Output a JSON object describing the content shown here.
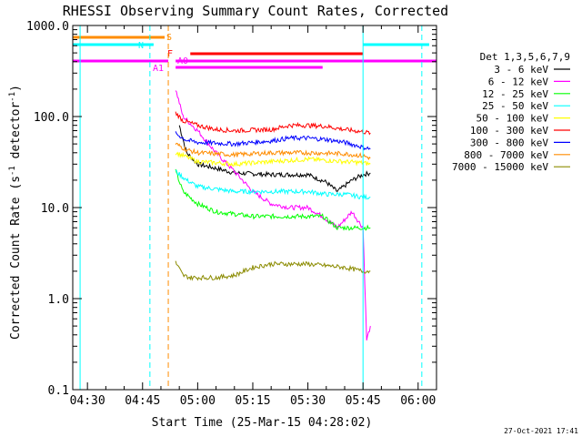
{
  "chart_data": {
    "type": "line",
    "title": "RHESSI Observing Summary Count Rates, Corrected",
    "xlabel": "Start Time (25-Mar-15 04:28:02)",
    "ylabel": "Corrected Count Rate (s⁻¹ detector⁻¹)",
    "ylabel_main": "Corrected Count Rate (s",
    "ylabel_sup1": "-1",
    "ylabel_mid": " detector",
    "ylabel_sup2": "-1",
    "ylabel_end": ")",
    "y_scale": "log",
    "ylim": [
      0.1,
      1000.0
    ],
    "xlim": [
      "04:26",
      "06:05"
    ],
    "x_ticks": [
      "04:30",
      "04:45",
      "05:00",
      "05:15",
      "05:30",
      "05:45",
      "06:00"
    ],
    "y_ticks": [
      "0.1",
      "1.0",
      "10.0",
      "100.0",
      "1000.0"
    ],
    "legend_placement": "right",
    "legend_title": "Det 1,3,5,6,7,9",
    "timestamp": "27-Oct-2021 17:41",
    "series": [
      {
        "name": "3 - 6 keV",
        "color": "#000000",
        "x": [
          "04:55",
          "04:57",
          "05:00",
          "05:05",
          "05:10",
          "05:20",
          "05:30",
          "05:35",
          "05:38",
          "05:42",
          "05:45",
          "05:47"
        ],
        "y": [
          80,
          40,
          30,
          27,
          24,
          23,
          23,
          19,
          15,
          20,
          23,
          24
        ]
      },
      {
        "name": "6 - 12 keV",
        "color": "#ff00ff",
        "x": [
          "04:54",
          "04:56",
          "05:00",
          "05:05",
          "05:10",
          "05:15",
          "05:20",
          "05:25",
          "05:30",
          "05:34",
          "05:38",
          "05:42",
          "05:45",
          "05:46",
          "05:47"
        ],
        "y": [
          200,
          100,
          70,
          40,
          25,
          15,
          11,
          10,
          10,
          8,
          6,
          9,
          6,
          0.35,
          0.5
        ]
      },
      {
        "name": "12 - 25 keV",
        "color": "#00ff00",
        "x": [
          "04:54",
          "04:56",
          "05:00",
          "05:05",
          "05:15",
          "05:25",
          "05:30",
          "05:34",
          "05:38",
          "05:42",
          "05:45",
          "05:47"
        ],
        "y": [
          25,
          15,
          11,
          9,
          8,
          8,
          8,
          8,
          6,
          6,
          6,
          6
        ]
      },
      {
        "name": "25 - 50 keV",
        "color": "#00ffff",
        "x": [
          "04:54",
          "04:57",
          "05:00",
          "05:10",
          "05:20",
          "05:30",
          "05:35",
          "05:40",
          "05:45",
          "05:47"
        ],
        "y": [
          25,
          20,
          17,
          15,
          15,
          15,
          14,
          14,
          13,
          13
        ]
      },
      {
        "name": "50 - 100 keV",
        "color": "#ffff00",
        "x": [
          "04:54",
          "04:57",
          "05:00",
          "05:10",
          "05:20",
          "05:30",
          "05:35",
          "05:40",
          "05:45",
          "05:47"
        ],
        "y": [
          40,
          36,
          32,
          30,
          32,
          34,
          33,
          32,
          31,
          30
        ]
      },
      {
        "name": "100 - 300 keV",
        "color": "#ff0000",
        "x": [
          "04:54",
          "04:56",
          "05:00",
          "05:05",
          "05:10",
          "05:20",
          "05:25",
          "05:30",
          "05:35",
          "05:40",
          "05:45",
          "05:47"
        ],
        "y": [
          110,
          90,
          80,
          72,
          70,
          72,
          80,
          80,
          78,
          72,
          68,
          66
        ]
      },
      {
        "name": "300 - 800 keV",
        "color": "#0000ff",
        "x": [
          "04:54",
          "04:57",
          "05:00",
          "05:10",
          "05:20",
          "05:25",
          "05:30",
          "05:35",
          "05:40",
          "05:45",
          "05:47"
        ],
        "y": [
          65,
          55,
          52,
          50,
          54,
          58,
          58,
          56,
          52,
          46,
          44
        ]
      },
      {
        "name": "800 - 7000 keV",
        "color": "#ff8c00",
        "x": [
          "04:54",
          "04:57",
          "05:00",
          "05:10",
          "05:20",
          "05:30",
          "05:40",
          "05:45",
          "05:47"
        ],
        "y": [
          50,
          43,
          40,
          38,
          40,
          40,
          39,
          37,
          35
        ]
      },
      {
        "name": "7000 - 15000 keV",
        "color": "#8b8b00",
        "x": [
          "04:54",
          "04:56",
          "04:58",
          "05:05",
          "05:10",
          "05:15",
          "05:20",
          "05:25",
          "05:30",
          "05:35",
          "05:40",
          "05:45",
          "05:47"
        ],
        "y": [
          2.5,
          1.8,
          1.7,
          1.7,
          1.8,
          2.2,
          2.4,
          2.4,
          2.4,
          2.3,
          2.2,
          2.0,
          2.0
        ]
      }
    ],
    "flag_bars": [
      {
        "label": "S",
        "color": "#ff8c00",
        "segments": [
          [
            "04:26",
            "04:51"
          ]
        ]
      },
      {
        "label": "N",
        "color": "#00ffff",
        "segments": [
          [
            "04:26",
            "04:48"
          ],
          [
            "05:45",
            "06:03"
          ]
        ]
      },
      {
        "label": "F",
        "color": "#ff0000",
        "segments": [
          [
            "04:58",
            "05:45"
          ]
        ]
      },
      {
        "label": "A1",
        "color": "#ff00ff",
        "segments": [
          [
            "04:26",
            "04:52"
          ],
          [
            "04:54",
            "05:45"
          ],
          [
            "05:45",
            "06:05"
          ]
        ]
      },
      {
        "label": "A0",
        "color": "#ff00ff",
        "segments": [
          [
            "04:54",
            "05:34"
          ]
        ]
      }
    ],
    "vertical_lines": [
      {
        "x": "04:28",
        "color": "#00ffff",
        "style": "solid"
      },
      {
        "x": "04:47",
        "color": "#00ffff",
        "style": "dashed"
      },
      {
        "x": "04:52",
        "color": "#ff8c00",
        "style": "dashed"
      },
      {
        "x": "05:45",
        "color": "#00ffff",
        "style": "solid"
      },
      {
        "x": "06:01",
        "color": "#00ffff",
        "style": "dashed"
      }
    ]
  }
}
